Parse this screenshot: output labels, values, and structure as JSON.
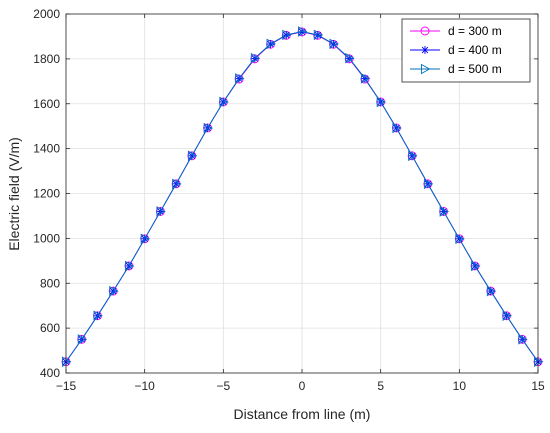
{
  "chart_data": {
    "type": "line",
    "title": "",
    "xlabel": "Distance from line (m)",
    "ylabel": "Electric field (V/m)",
    "xlim": [
      -15,
      15
    ],
    "ylim": [
      400,
      2000
    ],
    "xticks": [
      -15,
      -10,
      -5,
      0,
      5,
      10,
      15
    ],
    "xtick_labels": [
      "−15",
      "−10",
      "−5",
      "0",
      "5",
      "10",
      "15"
    ],
    "yticks": [
      400,
      600,
      800,
      1000,
      1200,
      1400,
      1600,
      1800,
      2000
    ],
    "ytick_labels": [
      "400",
      "600",
      "800",
      "1000",
      "1200",
      "1400",
      "1600",
      "1800",
      "2000"
    ],
    "grid": true,
    "legend_position": "top-right",
    "x": [
      -15,
      -14,
      -13,
      -12,
      -11,
      -10,
      -9,
      -8,
      -7,
      -6,
      -5,
      -4,
      -3,
      -2,
      -1,
      0,
      1,
      2,
      3,
      4,
      5,
      6,
      7,
      8,
      9,
      10,
      11,
      12,
      13,
      14,
      15
    ],
    "series": [
      {
        "name": "d = 300 m",
        "color": "#ff00ff",
        "marker": "circle",
        "values": [
          450,
          550,
          655,
          765,
          877,
          998,
          1120,
          1243,
          1368,
          1492,
          1608,
          1710,
          1800,
          1865,
          1905,
          1920,
          1905,
          1865,
          1800,
          1710,
          1608,
          1492,
          1368,
          1243,
          1120,
          998,
          877,
          765,
          655,
          550,
          450
        ]
      },
      {
        "name": "d = 400 m",
        "color": "#0000ff",
        "marker": "asterisk",
        "values": [
          450,
          550,
          655,
          765,
          877,
          998,
          1120,
          1243,
          1368,
          1492,
          1608,
          1712,
          1802,
          1866,
          1906,
          1921,
          1906,
          1866,
          1802,
          1712,
          1608,
          1492,
          1368,
          1243,
          1120,
          998,
          877,
          765,
          655,
          550,
          450
        ]
      },
      {
        "name": "d = 500 m",
        "color": "#0072bd",
        "marker": "triangle-right",
        "values": [
          450,
          550,
          655,
          765,
          877,
          998,
          1120,
          1243,
          1368,
          1492,
          1608,
          1713,
          1803,
          1867,
          1907,
          1922,
          1907,
          1867,
          1803,
          1713,
          1608,
          1492,
          1368,
          1243,
          1120,
          998,
          877,
          765,
          655,
          550,
          450
        ]
      }
    ]
  }
}
